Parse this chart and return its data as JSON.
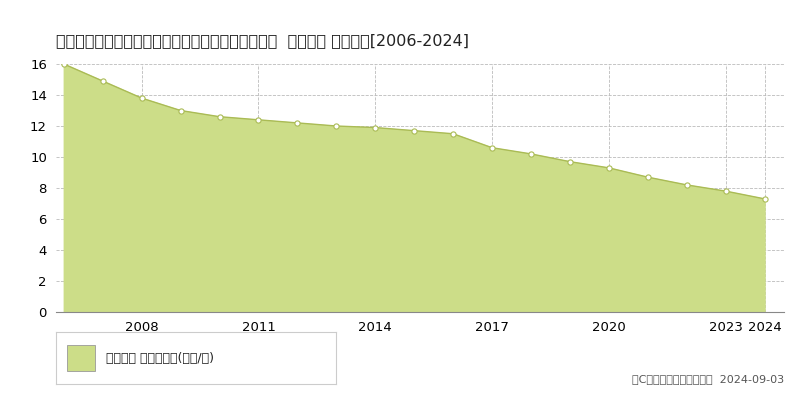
{
  "title": "愛知県知多郡南知多町大字師崎字神戸浦１７７番１  地価公示 地価推移[2006-2024]",
  "years": [
    2006,
    2007,
    2008,
    2009,
    2010,
    2011,
    2012,
    2013,
    2014,
    2015,
    2016,
    2017,
    2018,
    2019,
    2020,
    2021,
    2022,
    2023,
    2024
  ],
  "values": [
    16.0,
    14.9,
    13.8,
    13.0,
    12.6,
    12.4,
    12.2,
    12.0,
    11.9,
    11.7,
    11.5,
    10.6,
    10.2,
    9.7,
    9.3,
    8.7,
    8.2,
    7.8,
    7.3
  ],
  "fill_color": "#ccdd88",
  "line_color": "#aabb55",
  "marker_facecolor": "#ffffff",
  "marker_edgecolor": "#aabb55",
  "background_color": "#ffffff",
  "grid_color": "#bbbbbb",
  "ylim": [
    0,
    16
  ],
  "yticks": [
    0,
    2,
    4,
    6,
    8,
    10,
    12,
    14,
    16
  ],
  "xtick_years": [
    2008,
    2011,
    2014,
    2017,
    2020,
    2023,
    2024
  ],
  "legend_label": "地価公示 平均坪単価(万円/坪)",
  "legend_color": "#ccdd88",
  "copyright_text": "（C）土地価格ドットコム  2024-09-03",
  "title_fontsize": 11.5,
  "axis_fontsize": 9.5,
  "legend_fontsize": 9
}
